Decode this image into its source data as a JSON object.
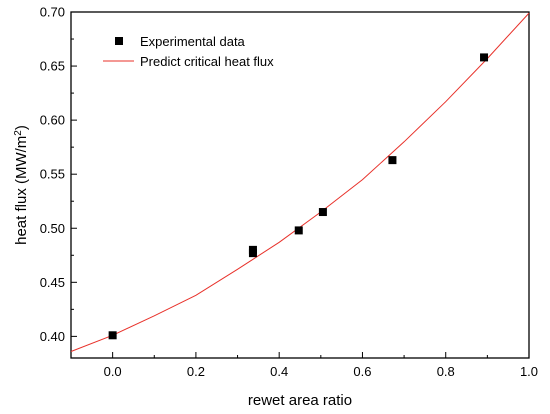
{
  "chart_data": {
    "type": "scatter",
    "xlabel": "rewet area ratio",
    "ylabel_main": "heat flux (MW/m",
    "ylabel_sup": "2",
    "ylabel_tail": ")",
    "xlim": [
      -0.1,
      1.0
    ],
    "ylim": [
      0.38,
      0.7
    ],
    "xticks": [
      0.0,
      0.2,
      0.4,
      0.6,
      0.8,
      1.0
    ],
    "xtick_labels": [
      "0.0",
      "0.2",
      "0.4",
      "0.6",
      "0.8",
      "1.0"
    ],
    "yticks": [
      0.4,
      0.45,
      0.5,
      0.55,
      0.6,
      0.65,
      0.7
    ],
    "ytick_labels": [
      "0.40",
      "0.45",
      "0.50",
      "0.55",
      "0.60",
      "0.65",
      "0.70"
    ],
    "legend_position": "top-left",
    "series": [
      {
        "name": "Experimental data",
        "kind": "scatter",
        "marker": "square",
        "color": "#000000",
        "points": [
          {
            "x": 0.0,
            "y": 0.401
          },
          {
            "x": 0.337,
            "y": 0.48
          },
          {
            "x": 0.337,
            "y": 0.477
          },
          {
            "x": 0.447,
            "y": 0.498
          },
          {
            "x": 0.505,
            "y": 0.515
          },
          {
            "x": 0.672,
            "y": 0.563
          },
          {
            "x": 0.892,
            "y": 0.658
          }
        ]
      },
      {
        "name": "Predict critical heat flux",
        "kind": "line",
        "color": "#e8312a",
        "points": [
          {
            "x": -0.1,
            "y": 0.386
          },
          {
            "x": 0.0,
            "y": 0.401
          },
          {
            "x": 0.1,
            "y": 0.419
          },
          {
            "x": 0.2,
            "y": 0.438
          },
          {
            "x": 0.3,
            "y": 0.462
          },
          {
            "x": 0.4,
            "y": 0.487
          },
          {
            "x": 0.5,
            "y": 0.515
          },
          {
            "x": 0.6,
            "y": 0.545
          },
          {
            "x": 0.7,
            "y": 0.58
          },
          {
            "x": 0.8,
            "y": 0.617
          },
          {
            "x": 0.9,
            "y": 0.657
          },
          {
            "x": 1.0,
            "y": 0.699
          }
        ]
      }
    ]
  }
}
